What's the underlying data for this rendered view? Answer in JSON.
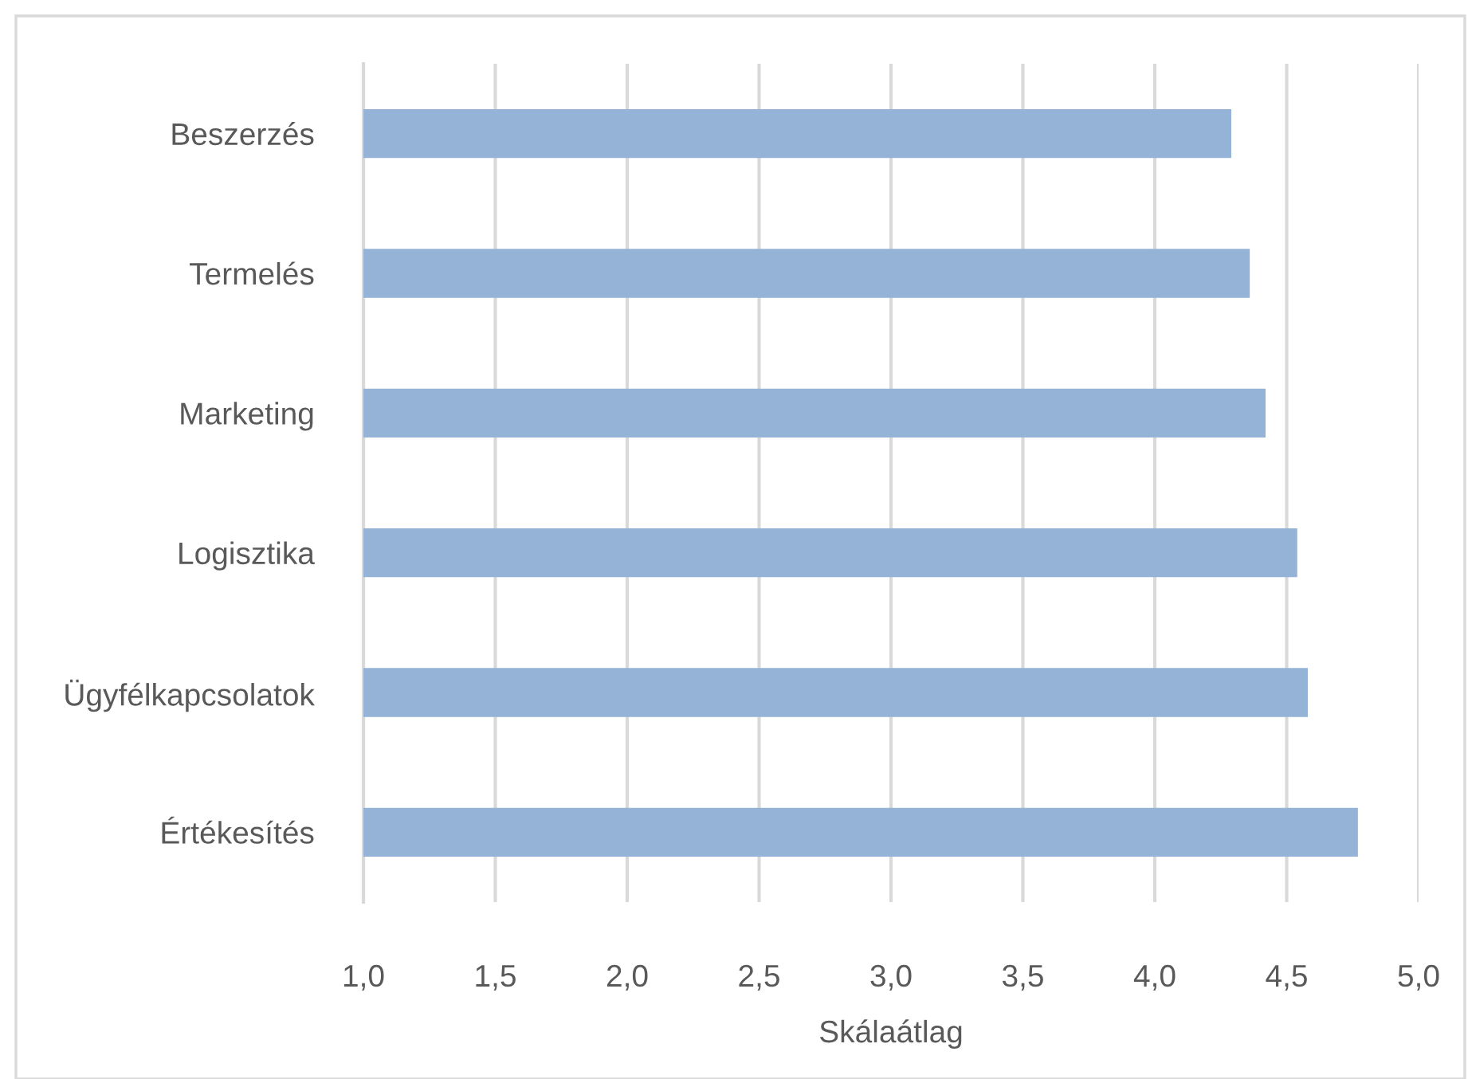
{
  "chart_data": {
    "type": "bar",
    "orientation": "horizontal",
    "xlabel": "Skálaátlag",
    "categories": [
      "Beszerzés",
      "Termelés",
      "Marketing",
      "Logisztika",
      "Ügyfélkapcsolatok",
      "Értékesítés"
    ],
    "values": [
      4.29,
      4.36,
      4.42,
      4.54,
      4.58,
      4.77
    ],
    "color": "#95b3d7",
    "xlim": [
      1,
      5
    ],
    "xticks": [
      {
        "value": 1,
        "label": "1,0"
      },
      {
        "value": 1.5,
        "label": "1,5"
      },
      {
        "value": 2,
        "label": "2,0"
      },
      {
        "value": 2.5,
        "label": "2,5"
      },
      {
        "value": 3,
        "label": "3,0"
      },
      {
        "value": 3.5,
        "label": "3,5"
      },
      {
        "value": 4,
        "label": "4,0"
      },
      {
        "value": 4.5,
        "label": "4,5"
      },
      {
        "value": 5,
        "label": "5,0"
      }
    ],
    "grid": "x",
    "legend": false
  }
}
